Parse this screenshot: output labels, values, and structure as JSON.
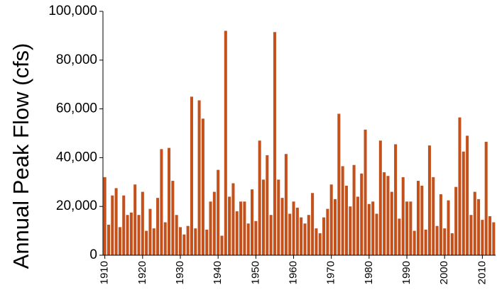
{
  "chart_data": {
    "type": "bar",
    "y_label": "Annual Peak Flow (cfs)",
    "color": "#c4501b",
    "x": [
      1910,
      1911,
      1912,
      1913,
      1914,
      1915,
      1916,
      1917,
      1918,
      1919,
      1920,
      1921,
      1922,
      1923,
      1924,
      1925,
      1926,
      1927,
      1928,
      1929,
      1930,
      1931,
      1932,
      1933,
      1934,
      1935,
      1936,
      1937,
      1938,
      1939,
      1940,
      1941,
      1942,
      1943,
      1944,
      1945,
      1946,
      1947,
      1948,
      1949,
      1950,
      1951,
      1952,
      1953,
      1954,
      1955,
      1956,
      1957,
      1958,
      1959,
      1960,
      1961,
      1962,
      1963,
      1964,
      1965,
      1966,
      1967,
      1968,
      1969,
      1970,
      1971,
      1972,
      1973,
      1974,
      1975,
      1976,
      1977,
      1978,
      1979,
      1980,
      1981,
      1982,
      1983,
      1984,
      1985,
      1986,
      1987,
      1988,
      1989,
      1990,
      1991,
      1992,
      1993,
      1994,
      1995,
      1996,
      1997,
      1998,
      1999,
      2000,
      2001,
      2002,
      2003,
      2004,
      2005,
      2006,
      2007,
      2008,
      2009,
      2010,
      2011,
      2012,
      2013
    ],
    "values": [
      32000,
      12500,
      24500,
      27500,
      11500,
      24500,
      16500,
      17500,
      29000,
      16500,
      26000,
      10000,
      19000,
      11000,
      23500,
      43500,
      13500,
      44000,
      30500,
      16500,
      11500,
      8500,
      12000,
      65000,
      11000,
      63500,
      56000,
      10500,
      22000,
      26000,
      35000,
      8000,
      92000,
      24000,
      29500,
      18000,
      22000,
      22000,
      13000,
      27000,
      14000,
      47000,
      31000,
      41000,
      16500,
      91500,
      31000,
      23500,
      41500,
      17000,
      22000,
      19500,
      15500,
      13000,
      16500,
      25500,
      11000,
      9000,
      15500,
      19000,
      29000,
      23000,
      58000,
      36500,
      28500,
      20000,
      37000,
      24000,
      33500,
      51500,
      21000,
      22000,
      17000,
      47000,
      34000,
      32500,
      26000,
      45500,
      15000,
      32000,
      22000,
      22000,
      10000,
      30500,
      28500,
      10500,
      45000,
      32000,
      12000,
      25000,
      11000,
      22500,
      9000,
      28000,
      56500,
      42500,
      49000,
      16500,
      26000,
      23000,
      14500,
      46500,
      16000,
      13500
    ],
    "xlim": [
      1909.5,
      2013.5
    ],
    "xticks": [
      1910,
      1920,
      1930,
      1940,
      1950,
      1960,
      1970,
      1980,
      1990,
      2000,
      2010
    ],
    "ylim": [
      0,
      100000
    ],
    "yticks": [
      0,
      {
        "value": 20000,
        "label": "20,000"
      },
      {
        "value": 40000,
        "label": "40,000"
      },
      {
        "value": 60000,
        "label": "60,000"
      },
      {
        "value": 80000,
        "label": "80,000"
      },
      {
        "value": 100000,
        "label": "100,000"
      }
    ]
  }
}
